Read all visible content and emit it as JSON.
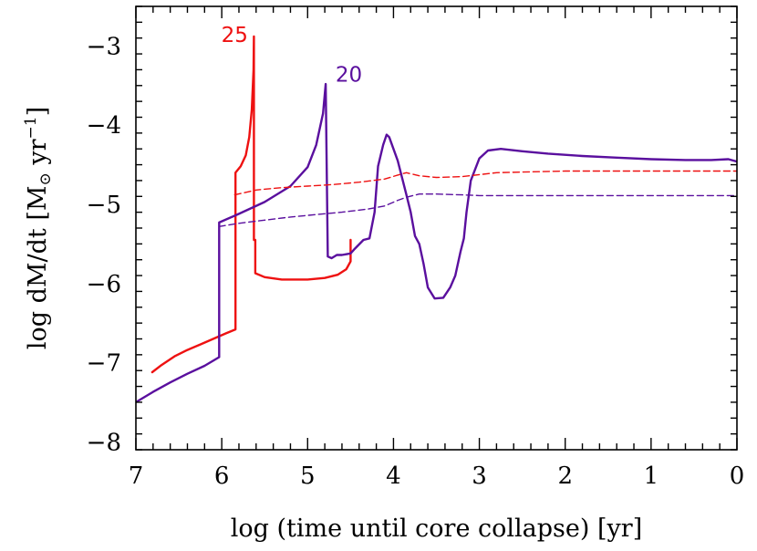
{
  "chart_data": {
    "type": "line",
    "title": "",
    "xlabel": "log (time until core collapse) [yr]",
    "ylabel_parts": {
      "pre": "log dM/dt [M",
      "sun": "⊙",
      "mid": " yr",
      "sup": "−1",
      "post": "]"
    },
    "xlim": [
      7,
      0
    ],
    "ylim": [
      -8.1,
      -2.5
    ],
    "x_ticks": [
      7,
      6,
      5,
      4,
      3,
      2,
      1,
      0
    ],
    "x_tick_labels": [
      "7",
      "6",
      "5",
      "4",
      "3",
      "2",
      "1",
      "0"
    ],
    "y_ticks": [
      -8,
      -7,
      -6,
      -5,
      -4,
      -3
    ],
    "y_tick_labels": [
      "−8",
      "−7",
      "−6",
      "−5",
      "−4",
      "−3"
    ],
    "grid": false,
    "series": [
      {
        "name": "25",
        "color": "#ee1111",
        "style": "solid",
        "points": [
          [
            6.81,
            -7.12
          ],
          [
            6.7,
            -7.03
          ],
          [
            6.55,
            -6.92
          ],
          [
            6.4,
            -6.84
          ],
          [
            6.25,
            -6.77
          ],
          [
            6.1,
            -6.7
          ],
          [
            5.95,
            -6.63
          ],
          [
            5.84,
            -6.58
          ],
          [
            5.84,
            -4.6
          ],
          [
            5.78,
            -4.52
          ],
          [
            5.72,
            -4.38
          ],
          [
            5.68,
            -4.15
          ],
          [
            5.65,
            -3.8
          ],
          [
            5.63,
            -3.3
          ],
          [
            5.625,
            -2.88
          ],
          [
            5.625,
            -5.45
          ],
          [
            5.61,
            -5.45
          ],
          [
            5.61,
            -5.87
          ],
          [
            5.5,
            -5.92
          ],
          [
            5.3,
            -5.95
          ],
          [
            5.0,
            -5.95
          ],
          [
            4.8,
            -5.93
          ],
          [
            4.65,
            -5.89
          ],
          [
            4.55,
            -5.82
          ],
          [
            4.5,
            -5.72
          ],
          [
            4.5,
            -5.45
          ]
        ]
      },
      {
        "name": "20",
        "color": "#5a0f9e",
        "style": "solid",
        "points": [
          [
            7.0,
            -7.5
          ],
          [
            6.8,
            -7.37
          ],
          [
            6.6,
            -7.25
          ],
          [
            6.4,
            -7.14
          ],
          [
            6.2,
            -7.04
          ],
          [
            6.03,
            -6.93
          ],
          [
            6.03,
            -5.23
          ],
          [
            5.8,
            -5.12
          ],
          [
            5.5,
            -4.97
          ],
          [
            5.2,
            -4.77
          ],
          [
            5.0,
            -4.53
          ],
          [
            4.9,
            -4.25
          ],
          [
            4.82,
            -3.85
          ],
          [
            4.79,
            -3.48
          ],
          [
            4.765,
            -5.66
          ],
          [
            4.72,
            -5.68
          ],
          [
            4.66,
            -5.64
          ],
          [
            4.6,
            -5.64
          ],
          [
            4.5,
            -5.62
          ],
          [
            4.45,
            -5.56
          ],
          [
            4.35,
            -5.45
          ],
          [
            4.28,
            -5.43
          ],
          [
            4.22,
            -5.1
          ],
          [
            4.18,
            -4.52
          ],
          [
            4.12,
            -4.25
          ],
          [
            4.08,
            -4.12
          ],
          [
            4.05,
            -4.15
          ],
          [
            4.0,
            -4.3
          ],
          [
            3.95,
            -4.45
          ],
          [
            3.85,
            -4.88
          ],
          [
            3.8,
            -5.1
          ],
          [
            3.75,
            -5.4
          ],
          [
            3.7,
            -5.5
          ],
          [
            3.65,
            -5.75
          ],
          [
            3.6,
            -6.05
          ],
          [
            3.52,
            -6.19
          ],
          [
            3.42,
            -6.18
          ],
          [
            3.34,
            -6.05
          ],
          [
            3.28,
            -5.9
          ],
          [
            3.22,
            -5.6
          ],
          [
            3.18,
            -5.43
          ],
          [
            3.15,
            -5.1
          ],
          [
            3.1,
            -4.7
          ],
          [
            3.0,
            -4.42
          ],
          [
            2.9,
            -4.32
          ],
          [
            2.75,
            -4.3
          ],
          [
            2.5,
            -4.33
          ],
          [
            2.2,
            -4.36
          ],
          [
            1.8,
            -4.39
          ],
          [
            1.4,
            -4.41
          ],
          [
            1.0,
            -4.43
          ],
          [
            0.6,
            -4.44
          ],
          [
            0.3,
            -4.44
          ],
          [
            0.1,
            -4.43
          ],
          [
            0.0,
            -4.46
          ]
        ]
      },
      {
        "name": "",
        "color": "#ee1111",
        "style": "dashed",
        "points": [
          [
            5.85,
            -4.88
          ],
          [
            5.6,
            -4.82
          ],
          [
            5.3,
            -4.79
          ],
          [
            5.0,
            -4.77
          ],
          [
            4.7,
            -4.75
          ],
          [
            4.4,
            -4.72
          ],
          [
            4.1,
            -4.68
          ],
          [
            3.95,
            -4.63
          ],
          [
            3.85,
            -4.6
          ],
          [
            3.7,
            -4.64
          ],
          [
            3.5,
            -4.66
          ],
          [
            3.2,
            -4.65
          ],
          [
            2.8,
            -4.6
          ],
          [
            2.4,
            -4.59
          ],
          [
            2.0,
            -4.58
          ],
          [
            1.0,
            -4.58
          ],
          [
            0.0,
            -4.58
          ]
        ]
      },
      {
        "name": "",
        "color": "#5a0f9e",
        "style": "dashed",
        "points": [
          [
            6.03,
            -6.93
          ],
          [
            6.03,
            -5.28
          ],
          [
            5.8,
            -5.24
          ],
          [
            5.5,
            -5.2
          ],
          [
            5.2,
            -5.16
          ],
          [
            4.9,
            -5.13
          ],
          [
            4.6,
            -5.1
          ],
          [
            4.3,
            -5.06
          ],
          [
            4.1,
            -5.02
          ],
          [
            3.95,
            -4.95
          ],
          [
            3.85,
            -4.91
          ],
          [
            3.7,
            -4.87
          ],
          [
            3.5,
            -4.87
          ],
          [
            3.2,
            -4.88
          ],
          [
            3.0,
            -4.89
          ],
          [
            2.0,
            -4.89
          ],
          [
            1.0,
            -4.89
          ],
          [
            0.0,
            -4.89
          ]
        ]
      }
    ],
    "annotations": [
      {
        "text": "25",
        "x": 5.85,
        "y": -2.95,
        "color": "#ee1111"
      },
      {
        "text": "20",
        "x": 4.52,
        "y": -3.45,
        "color": "#5a0f9e"
      }
    ]
  }
}
